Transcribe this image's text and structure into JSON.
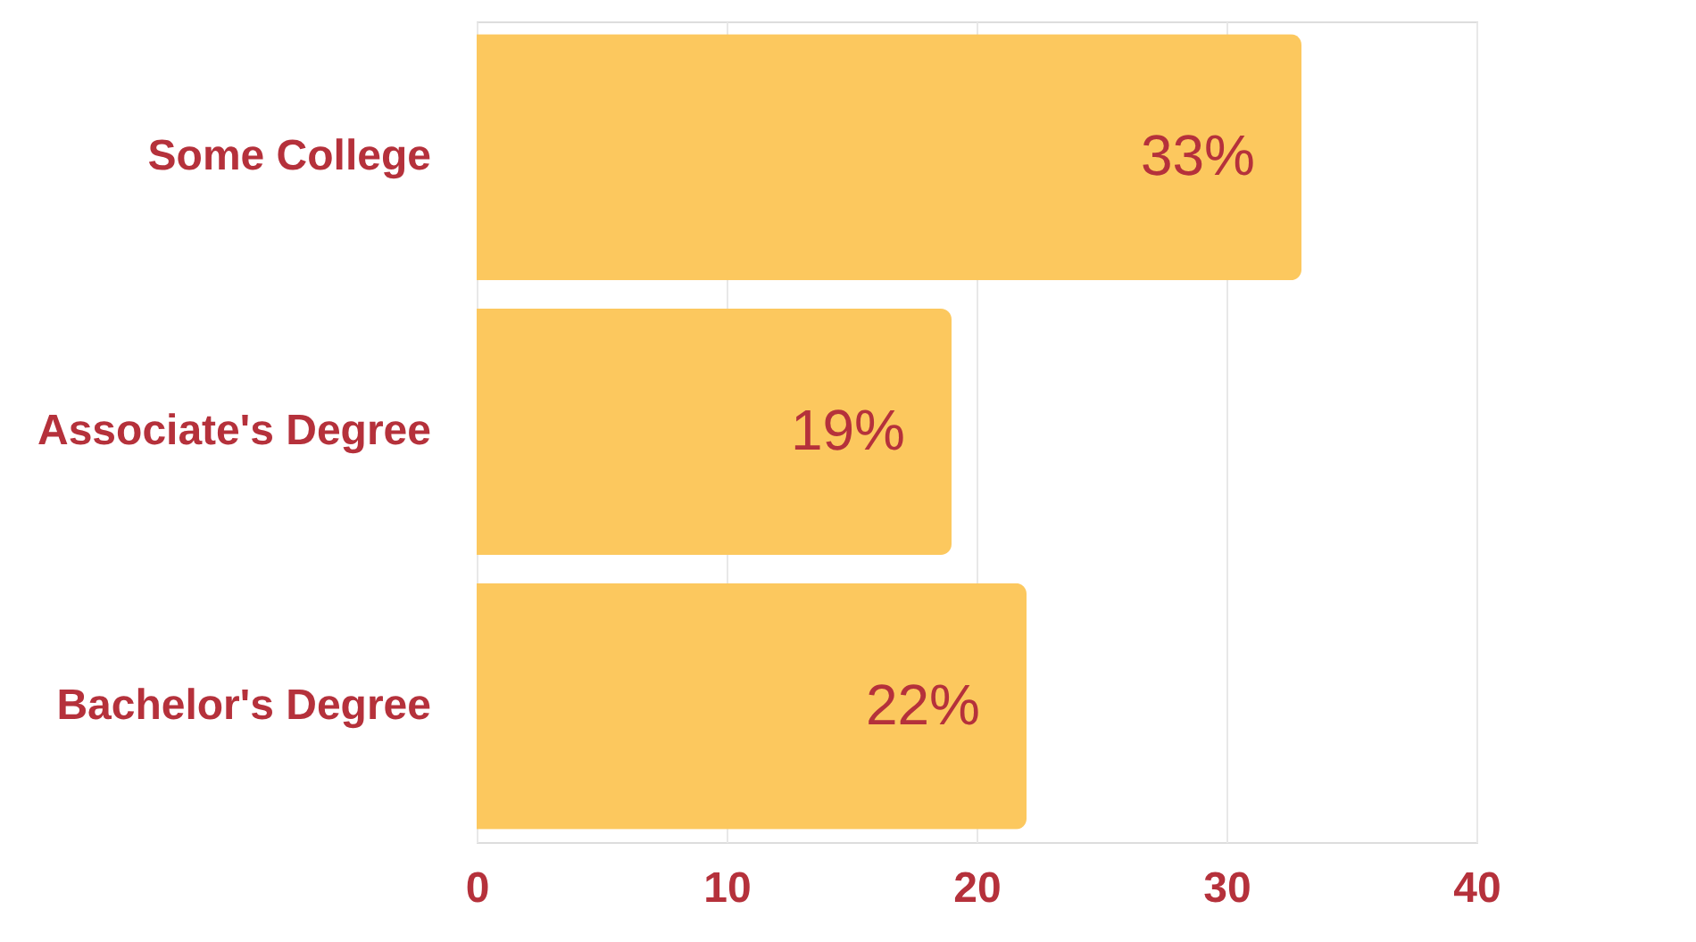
{
  "chart_data": {
    "type": "bar",
    "orientation": "horizontal",
    "categories": [
      "Some College",
      "Associate's Degree",
      "Bachelor's Degree"
    ],
    "values": [
      33,
      19,
      22
    ],
    "value_labels": [
      "33%",
      "19%",
      "22%"
    ],
    "color": "#fcc85e",
    "xlim": [
      0,
      40
    ],
    "xticks": [
      0,
      10,
      20,
      30,
      40
    ],
    "grid": "x"
  }
}
